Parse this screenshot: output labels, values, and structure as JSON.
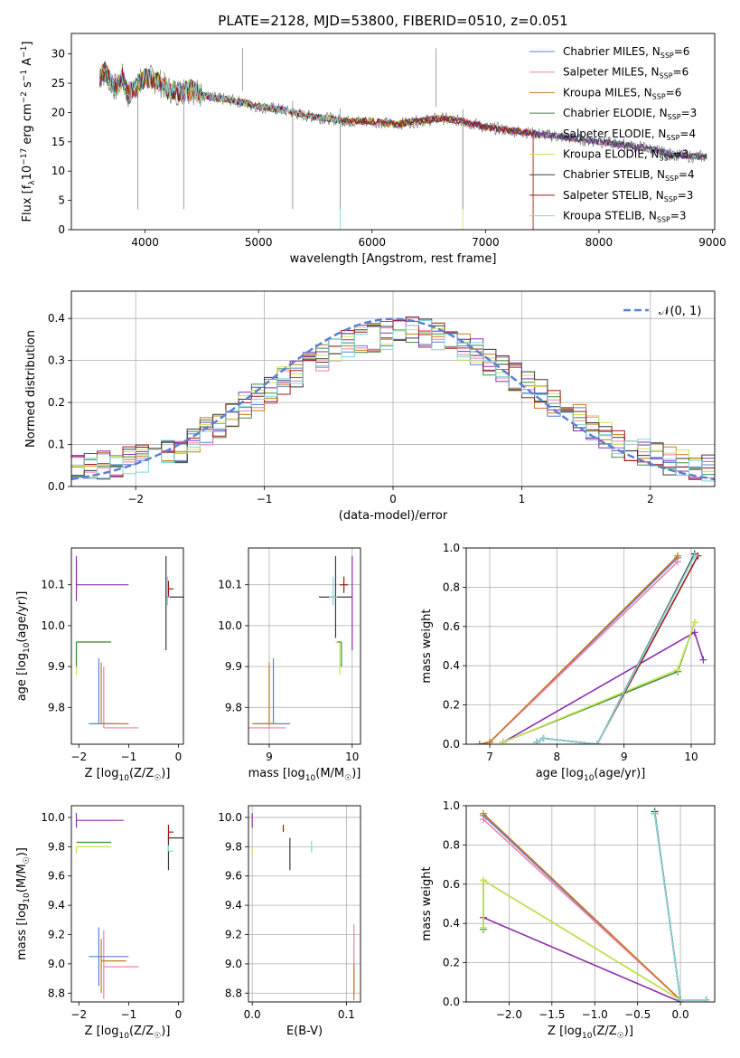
{
  "figure_title": "PLATE=2128, MJD=53800, FIBERID=0510, z=0.051",
  "colors": {
    "Chabrier MILES": "#5b7fd6",
    "Salpeter MILES": "#ef7fb0",
    "Kroupa MILES": "#c87a1e",
    "Chabrier ELODIE": "#3d8c3d",
    "Salpeter ELODIE": "#8e2fb0",
    "Kroupa ELODIE": "#c8e650",
    "Chabrier STELIB": "#3a3a3a",
    "Salpeter STELIB": "#a01818",
    "Kroupa STELIB": "#7fd8dc"
  },
  "chart_data": [
    {
      "id": "spectrum",
      "type": "line",
      "title": "PLATE=2128, MJD=53800, FIBERID=0510, z=0.051",
      "xlabel": "wavelength [Angstrom, rest frame]",
      "ylabel": "Flux [f_λ 10^-17 erg cm^-2 s^-1 A^-1]",
      "xlim": [
        3350,
        9020
      ],
      "ylim": [
        0,
        33.5
      ],
      "xticks": [
        4000,
        5000,
        6000,
        7000,
        8000,
        9000
      ],
      "yticks": [
        0,
        5,
        10,
        15,
        20,
        25,
        30
      ],
      "legend_position": "top-right",
      "legend": [
        {
          "name": "Chabrier MILES",
          "sub": "SSP",
          "n": "6"
        },
        {
          "name": "Salpeter MILES",
          "sub": "SSP",
          "n": "6"
        },
        {
          "name": "Kroupa MILES",
          "sub": "SSP",
          "n": "6"
        },
        {
          "name": "Chabrier ELODIE",
          "sub": "SSP",
          "n": "3"
        },
        {
          "name": "Salpeter ELODIE",
          "sub": "SSP",
          "n": "4"
        },
        {
          "name": "Kroupa ELODIE",
          "sub": "SSP",
          "n": "3"
        },
        {
          "name": "Chabrier STELIB",
          "sub": "SSP",
          "n": "4"
        },
        {
          "name": "Salpeter STELIB",
          "sub": "SSP",
          "n": "3"
        },
        {
          "name": "Kroupa STELIB",
          "sub": "SSP",
          "n": "3"
        }
      ],
      "observed_color": "#7f7f7f",
      "observed_spectrum": {
        "x": [
          3600,
          3650,
          3700,
          3750,
          3800,
          3850,
          3900,
          3950,
          4000,
          4100,
          4200,
          4300,
          4400,
          4500,
          4600,
          4800,
          5000,
          5200,
          5400,
          5600,
          5800,
          6000,
          6200,
          6400,
          6600,
          6800,
          7000,
          7200,
          7400,
          7600,
          7800,
          8000,
          8200,
          8400,
          8600,
          8800,
          8950
        ],
        "y": [
          26,
          27,
          25,
          24,
          26,
          23,
          24,
          25,
          26,
          25.5,
          24,
          23.5,
          24,
          23,
          22.5,
          22,
          21,
          20.5,
          19.5,
          19,
          18.5,
          18.5,
          18,
          18.5,
          19,
          18.5,
          17.5,
          17,
          16.5,
          16,
          15.5,
          15,
          14.5,
          14,
          13,
          12.5,
          12.5
        ]
      },
      "model_cutoffs": [
        {
          "series": "Kroupa ELODIE",
          "x": 6800
        },
        {
          "series": "Salpeter STELIB",
          "x": 7420
        },
        {
          "series": "Kroupa MILES",
          "x": 7420
        },
        {
          "series": "Kroupa STELIB",
          "x": 5720
        }
      ],
      "absorption_lines": [
        3935,
        4340,
        4860,
        5300,
        5720,
        6565,
        6800
      ]
    },
    {
      "id": "residuals",
      "type": "line",
      "xlabel": "(data-model)/error",
      "ylabel": "Normed distribution",
      "xlim": [
        -2.5,
        2.5
      ],
      "ylim": [
        0,
        0.465
      ],
      "xticks": [
        -2,
        -1,
        0,
        1,
        2
      ],
      "yticks": [
        0.0,
        0.1,
        0.2,
        0.3,
        0.4
      ],
      "grid": true,
      "legend_position": "top-right",
      "reference_label": "𝒩(0, 1)",
      "reference_color": "#5b7fd6",
      "bin_width": 0.1,
      "hist_base": [
        0.04,
        0.045,
        0.05,
        0.055,
        0.06,
        0.065,
        0.07,
        0.08,
        0.09,
        0.11,
        0.13,
        0.15,
        0.17,
        0.19,
        0.21,
        0.23,
        0.25,
        0.27,
        0.29,
        0.31,
        0.33,
        0.34,
        0.35,
        0.355,
        0.36,
        0.37,
        0.37,
        0.365,
        0.355,
        0.345,
        0.33,
        0.32,
        0.3,
        0.28,
        0.26,
        0.24,
        0.22,
        0.2,
        0.18,
        0.16,
        0.14,
        0.12,
        0.1,
        0.09,
        0.08,
        0.07,
        0.06,
        0.055,
        0.05,
        0.045
      ]
    },
    {
      "id": "age-vs-Z",
      "type": "scatter",
      "xlabel": "Z [log10(Z/Z☉)]",
      "ylabel": "age [log10(age/yr)]",
      "xlim": [
        -2.15,
        0.1
      ],
      "ylim": [
        9.71,
        10.19
      ],
      "xticks": [
        -2,
        -1,
        0
      ],
      "yticks": [
        9.8,
        9.9,
        10.0,
        10.1
      ],
      "grid": false,
      "points": [
        {
          "series": "Salpeter ELODIE",
          "x": -2.05,
          "y": 10.1,
          "xerr": [
            0.0,
            1.05
          ],
          "yerr": [
            0.04,
            0.07
          ]
        },
        {
          "series": "Kroupa ELODIE",
          "x": -2.05,
          "y": 9.96,
          "xerr": [
            0.0,
            0.7
          ],
          "yerr": [
            0.08,
            0.0
          ]
        },
        {
          "series": "Chabrier ELODIE",
          "x": -2.05,
          "y": 9.96,
          "xerr": [
            0.0,
            0.7
          ],
          "yerr": [
            0.06,
            0.0
          ]
        },
        {
          "series": "Chabrier STELIB",
          "x": -0.25,
          "y": 10.07,
          "xerr": [
            0.0,
            0.4
          ],
          "yerr": [
            0.13,
            0.1
          ]
        },
        {
          "series": "Salpeter STELIB",
          "x": -0.2,
          "y": 10.09,
          "xerr": [
            0.0,
            0.1
          ],
          "yerr": [
            0.02,
            0.02
          ]
        },
        {
          "series": "Kroupa STELIB",
          "x": -0.22,
          "y": 10.07,
          "xerr": [
            0.0,
            0.05
          ],
          "yerr": [
            0.02,
            0.05
          ]
        },
        {
          "series": "Chabrier MILES",
          "x": -1.6,
          "y": 9.76,
          "xerr": [
            0.2,
            0.4
          ],
          "yerr": [
            0.0,
            0.16
          ]
        },
        {
          "series": "Salpeter MILES",
          "x": -1.5,
          "y": 9.75,
          "xerr": [
            0.0,
            0.7
          ],
          "yerr": [
            0.0,
            0.15
          ]
        },
        {
          "series": "Kroupa MILES",
          "x": -1.55,
          "y": 9.76,
          "xerr": [
            0.0,
            0.55
          ],
          "yerr": [
            0.0,
            0.15
          ]
        }
      ]
    },
    {
      "id": "age-vs-mass",
      "type": "scatter",
      "xlabel": "mass [log10(M/M☉)]",
      "ylabel": "",
      "xlim": [
        8.75,
        10.1
      ],
      "ylim": [
        9.71,
        10.19
      ],
      "xticks": [
        9,
        10
      ],
      "yticks": [
        9.8,
        9.9,
        10.0,
        10.1
      ],
      "grid": true,
      "points": [
        {
          "series": "Chabrier MILES",
          "x": 9.05,
          "y": 9.76,
          "xerr": [
            0.25,
            0.2
          ],
          "yerr": [
            0.0,
            0.16
          ]
        },
        {
          "series": "Salpeter MILES",
          "x": 9.0,
          "y": 9.75,
          "xerr": [
            0.25,
            0.2
          ],
          "yerr": [
            0.0,
            0.15
          ]
        },
        {
          "series": "Kroupa MILES",
          "x": 9.0,
          "y": 9.76,
          "xerr": [
            0.2,
            0.1
          ],
          "yerr": [
            0.0,
            0.15
          ]
        },
        {
          "series": "Chabrier STELIB",
          "x": 9.8,
          "y": 10.07,
          "xerr": [
            0.2,
            0.2
          ],
          "yerr": [
            0.1,
            0.1
          ]
        },
        {
          "series": "Salpeter STELIB",
          "x": 9.9,
          "y": 10.1,
          "xerr": [
            0.05,
            0.05
          ],
          "yerr": [
            0.02,
            0.02
          ]
        },
        {
          "series": "Kroupa STELIB",
          "x": 9.77,
          "y": 10.07,
          "xerr": [
            0.05,
            0.05
          ],
          "yerr": [
            0.02,
            0.05
          ]
        },
        {
          "series": "Salpeter ELODIE",
          "x": 10.0,
          "y": 10.1,
          "xerr": [
            0.0,
            0.0
          ],
          "yerr": [
            0.16,
            0.07
          ]
        },
        {
          "series": "Kroupa ELODIE",
          "x": 9.85,
          "y": 9.96,
          "xerr": [
            0.05,
            0.0
          ],
          "yerr": [
            0.08,
            0.0
          ]
        },
        {
          "series": "Chabrier ELODIE",
          "x": 9.87,
          "y": 9.96,
          "xerr": [
            0.05,
            0.0
          ],
          "yerr": [
            0.06,
            0.0
          ]
        }
      ]
    },
    {
      "id": "mass-weight-vs-age",
      "type": "line",
      "xlabel": "age [log10(age/yr)]",
      "ylabel": "mass weight",
      "xlim": [
        6.65,
        10.35
      ],
      "ylim": [
        0.0,
        1.0
      ],
      "xticks": [
        7,
        8,
        9,
        10
      ],
      "yticks": [
        0.0,
        0.2,
        0.4,
        0.6,
        0.8,
        1.0
      ],
      "grid": true,
      "series": [
        {
          "name": "Chabrier MILES",
          "x": [
            6.85,
            7.0,
            9.8
          ],
          "y": [
            0.0,
            0.01,
            0.95
          ]
        },
        {
          "name": "Salpeter MILES",
          "x": [
            6.85,
            7.0,
            9.8
          ],
          "y": [
            0.0,
            0.01,
            0.93
          ]
        },
        {
          "name": "Kroupa MILES",
          "x": [
            6.85,
            7.0,
            9.8
          ],
          "y": [
            0.0,
            0.01,
            0.96
          ]
        },
        {
          "name": "Chabrier ELODIE",
          "x": [
            7.2,
            9.8,
            10.05
          ],
          "y": [
            0.01,
            0.37,
            0.62
          ]
        },
        {
          "name": "Salpeter ELODIE",
          "x": [
            7.2,
            10.05,
            10.18
          ],
          "y": [
            0.01,
            0.57,
            0.43
          ]
        },
        {
          "name": "Kroupa ELODIE",
          "x": [
            7.2,
            9.8,
            10.05
          ],
          "y": [
            0.01,
            0.38,
            0.62
          ]
        },
        {
          "name": "Chabrier STELIB",
          "x": [
            7.7,
            7.8,
            8.6,
            10.05
          ],
          "y": [
            0.01,
            0.03,
            0.0,
            0.97
          ]
        },
        {
          "name": "Salpeter STELIB",
          "x": [
            7.7,
            7.8,
            8.6,
            10.1
          ],
          "y": [
            0.01,
            0.03,
            0.0,
            0.96
          ]
        },
        {
          "name": "Kroupa STELIB",
          "x": [
            7.7,
            7.8,
            8.6,
            10.05
          ],
          "y": [
            0.01,
            0.03,
            0.0,
            0.96
          ]
        }
      ]
    },
    {
      "id": "mass-vs-Z",
      "type": "scatter",
      "xlabel": "Z [log10(Z/Z☉)]",
      "ylabel": "mass [log10(M/M☉)]",
      "xlim": [
        -2.15,
        0.1
      ],
      "ylim": [
        8.74,
        10.08
      ],
      "xticks": [
        -2,
        -1,
        0
      ],
      "yticks": [
        8.8,
        9.0,
        9.2,
        9.4,
        9.6,
        9.8,
        10.0
      ],
      "grid": false,
      "points": [
        {
          "series": "Salpeter ELODIE",
          "x": -2.05,
          "y": 9.98,
          "xerr": [
            0.0,
            0.95
          ],
          "yerr": [
            0.05,
            0.05
          ]
        },
        {
          "series": "Chabrier ELODIE",
          "x": -2.05,
          "y": 9.83,
          "xerr": [
            0.0,
            0.7
          ],
          "yerr": [
            0.0,
            0.0
          ]
        },
        {
          "series": "Kroupa ELODIE",
          "x": -2.05,
          "y": 9.8,
          "xerr": [
            0.0,
            0.7
          ],
          "yerr": [
            0.05,
            0.0
          ]
        },
        {
          "series": "Chabrier STELIB",
          "x": -0.2,
          "y": 9.86,
          "xerr": [
            0.0,
            0.35
          ],
          "yerr": [
            0.22,
            0.0
          ]
        },
        {
          "series": "Salpeter STELIB",
          "x": -0.2,
          "y": 9.9,
          "xerr": [
            0.0,
            0.1
          ],
          "yerr": [
            0.06,
            0.05
          ]
        },
        {
          "series": "Kroupa STELIB",
          "x": -0.2,
          "y": 9.77,
          "xerr": [
            0.0,
            0.1
          ],
          "yerr": [
            0.0,
            0.04
          ]
        },
        {
          "series": "Chabrier MILES",
          "x": -1.6,
          "y": 9.05,
          "xerr": [
            0.2,
            0.6
          ],
          "yerr": [
            0.2,
            0.2
          ]
        },
        {
          "series": "Salpeter MILES",
          "x": -1.5,
          "y": 8.98,
          "xerr": [
            0.0,
            0.7
          ],
          "yerr": [
            0.22,
            0.25
          ]
        },
        {
          "series": "Kroupa MILES",
          "x": -1.55,
          "y": 9.02,
          "xerr": [
            0.0,
            0.5
          ],
          "yerr": [
            0.22,
            0.15
          ]
        }
      ]
    },
    {
      "id": "mass-vs-EBV",
      "type": "scatter",
      "xlabel": "E(B-V)",
      "ylabel": "",
      "xlim": [
        -0.004,
        0.115
      ],
      "ylim": [
        8.74,
        10.08
      ],
      "xticks": [
        0.0,
        0.1
      ],
      "yticks": [
        8.8,
        9.0,
        9.2,
        9.4,
        9.6,
        9.8,
        10.0
      ],
      "grid": true,
      "points": [
        {
          "series": "Salpeter ELODIE",
          "x": 0.0,
          "y": 9.98,
          "xerr": [
            0,
            0
          ],
          "yerr": [
            0.05,
            0.05
          ]
        },
        {
          "series": "Kroupa ELODIE",
          "x": 0.0,
          "y": 9.8,
          "xerr": [
            0,
            0
          ],
          "yerr": [
            0.05,
            0.0
          ]
        },
        {
          "series": "Salpeter STELIB",
          "x": 0.033,
          "y": 9.95,
          "xerr": [
            0,
            0
          ],
          "yerr": [
            0.05,
            0.0
          ]
        },
        {
          "series": "Chabrier STELIB",
          "x": 0.04,
          "y": 9.86,
          "xerr": [
            0,
            0
          ],
          "yerr": [
            0.22,
            0.0
          ]
        },
        {
          "series": "Kroupa STELIB",
          "x": 0.063,
          "y": 9.8,
          "xerr": [
            0,
            0
          ],
          "yerr": [
            0.04,
            0.04
          ]
        },
        {
          "series": "Salpeter MILES",
          "x": 0.108,
          "y": 9.1,
          "xerr": [
            0,
            0
          ],
          "yerr": [
            0.3,
            0.17
          ]
        },
        {
          "series": "Kroupa MILES",
          "x": 0.108,
          "y": 9.0,
          "xerr": [
            0,
            0
          ],
          "yerr": [
            0.25,
            0.0
          ]
        }
      ]
    },
    {
      "id": "mass-weight-vs-Z",
      "type": "line",
      "xlabel": "Z [log10(Z/Z☉)]",
      "ylabel": "mass weight",
      "xlim": [
        -2.5,
        0.4
      ],
      "ylim": [
        0.0,
        1.0
      ],
      "xticks": [
        -2.0,
        -1.5,
        -1.0,
        -0.5,
        0.0
      ],
      "yticks": [
        0.0,
        0.2,
        0.4,
        0.6,
        0.8,
        1.0
      ],
      "grid": true,
      "series": [
        {
          "name": "Chabrier MILES",
          "x": [
            -2.3,
            0.0
          ],
          "y": [
            0.95,
            0.01
          ]
        },
        {
          "name": "Salpeter MILES",
          "x": [
            -2.3,
            0.0
          ],
          "y": [
            0.93,
            0.01
          ]
        },
        {
          "name": "Kroupa MILES",
          "x": [
            -2.3,
            0.0
          ],
          "y": [
            0.96,
            0.01
          ]
        },
        {
          "name": "Chabrier ELODIE",
          "x": [
            -2.3,
            -2.3,
            0.0
          ],
          "y": [
            0.37,
            0.62,
            0.01
          ]
        },
        {
          "name": "Salpeter ELODIE",
          "x": [
            -2.3,
            0.0
          ],
          "y": [
            0.43,
            0.0
          ]
        },
        {
          "name": "Kroupa ELODIE",
          "x": [
            -2.3,
            -2.3,
            0.0
          ],
          "y": [
            0.38,
            0.62,
            0.01
          ]
        },
        {
          "name": "Chabrier STELIB",
          "x": [
            -0.3,
            0.0,
            0.3
          ],
          "y": [
            0.97,
            0.01,
            0.01
          ]
        },
        {
          "name": "Salpeter STELIB",
          "x": [
            -0.3,
            0.0,
            0.3
          ],
          "y": [
            0.96,
            0.01,
            0.01
          ]
        },
        {
          "name": "Kroupa STELIB",
          "x": [
            -0.3,
            0.0,
            0.3
          ],
          "y": [
            0.96,
            0.01,
            0.01
          ]
        }
      ]
    }
  ]
}
